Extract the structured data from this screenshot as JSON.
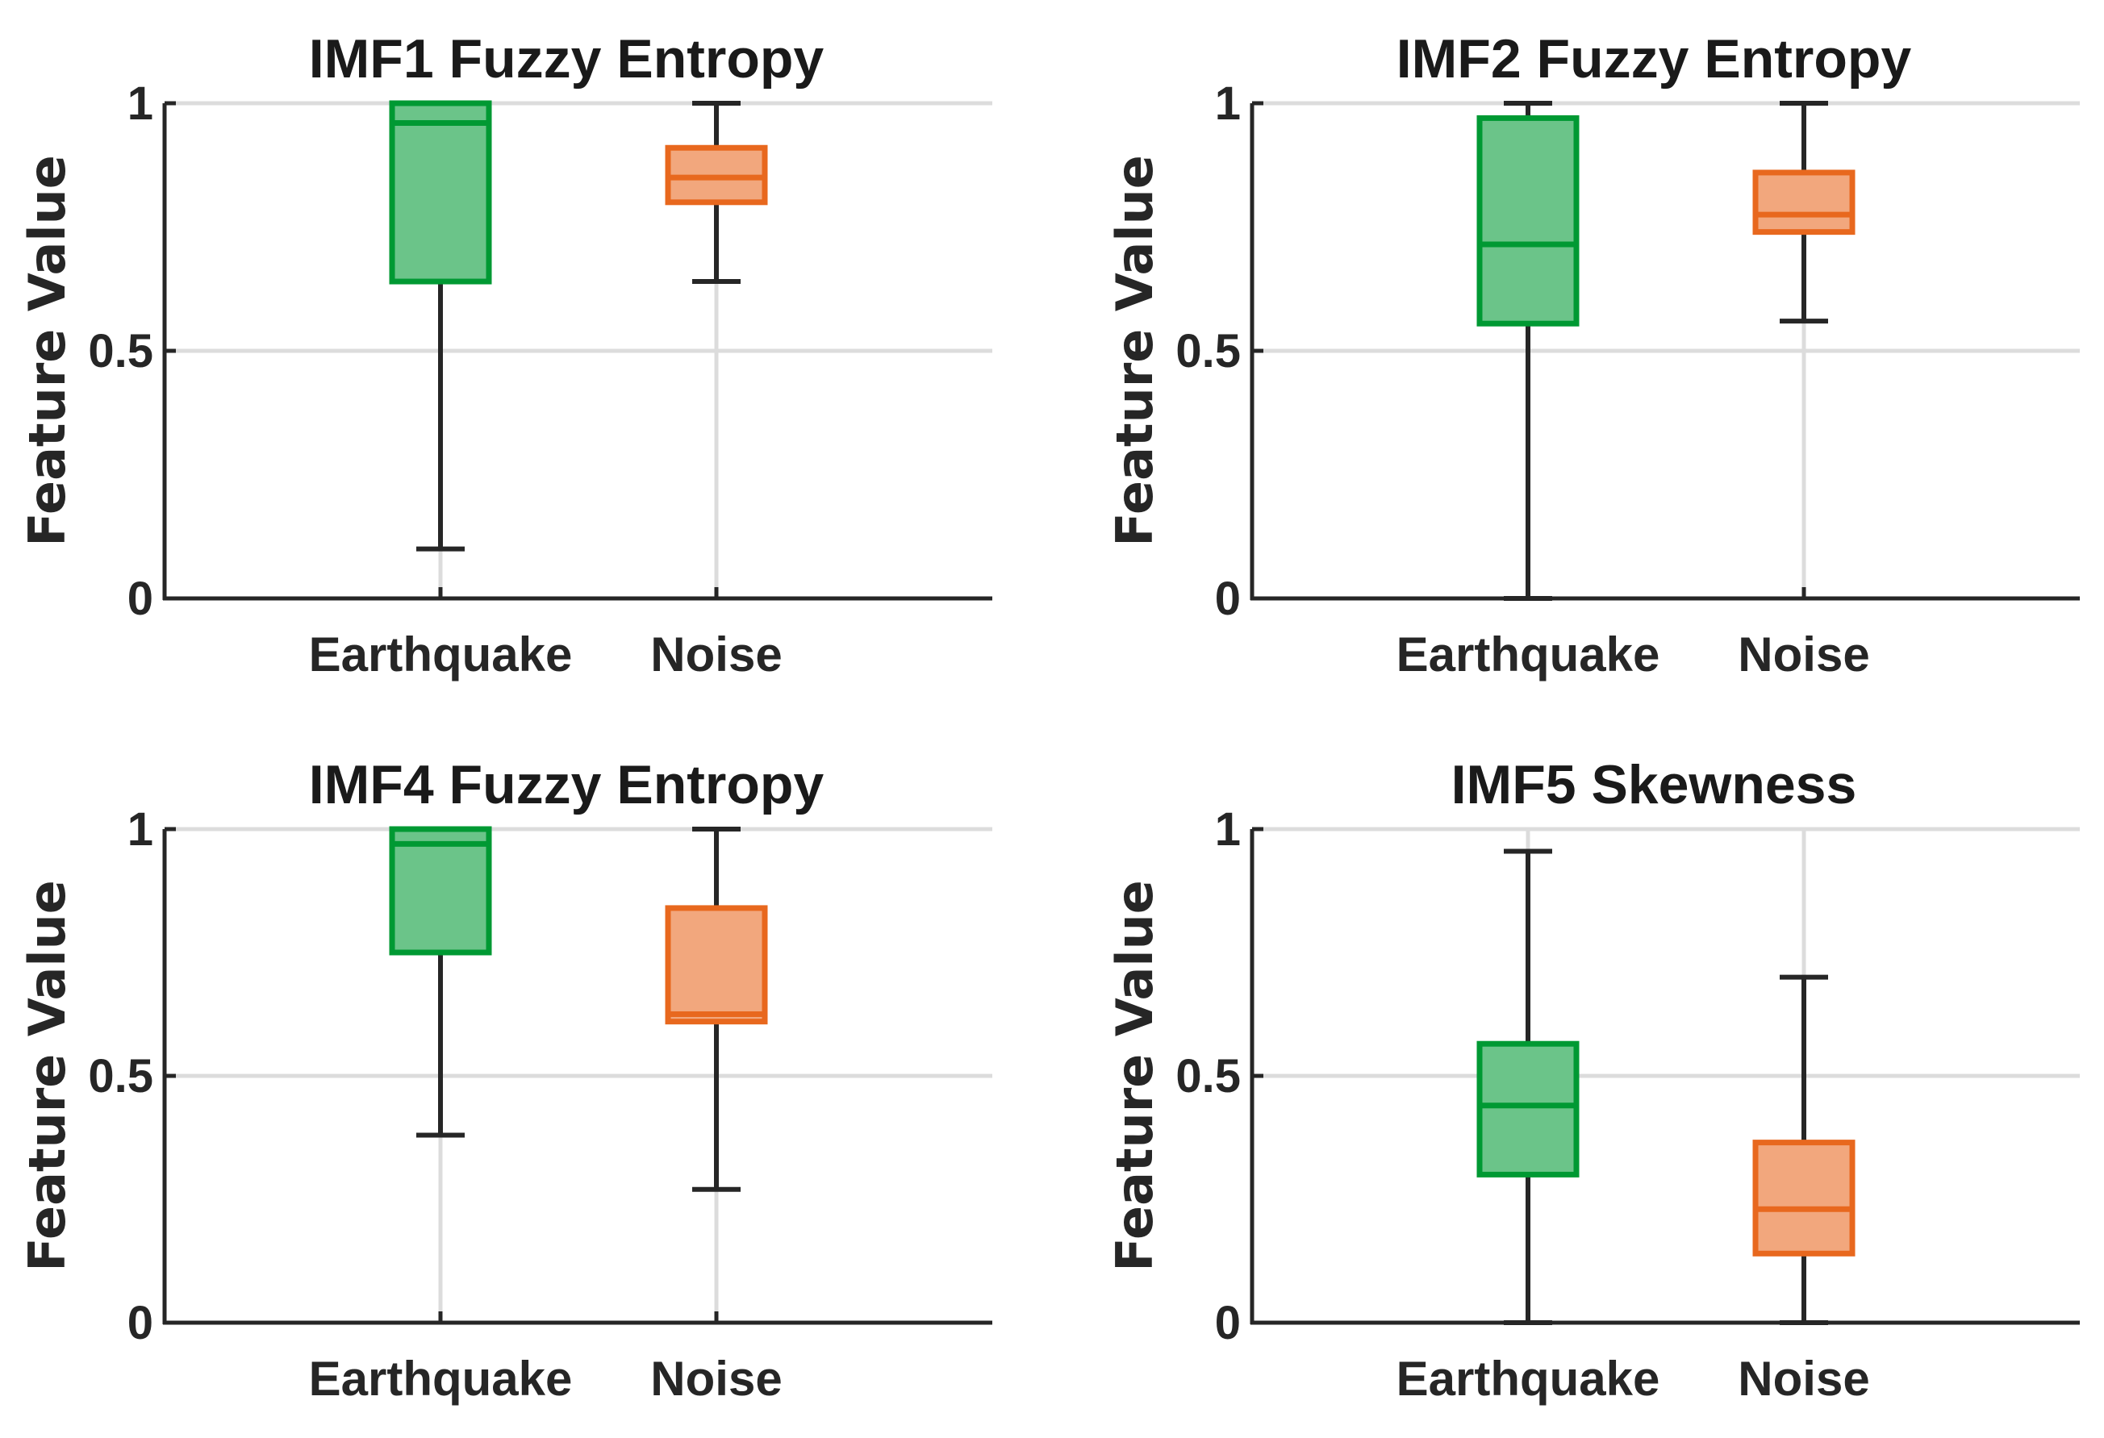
{
  "chart_data": [
    {
      "type": "box",
      "title": "IMF1 Fuzzy Entropy",
      "ylabel": "Feature Value",
      "xlabel": "",
      "ylim": [
        0,
        1
      ],
      "yticks": [
        0,
        0.5,
        1
      ],
      "ytick_labels": [
        "0",
        "0.5",
        "1"
      ],
      "grid": true,
      "categories": [
        "Earthquake",
        "Noise"
      ],
      "boxes": [
        {
          "name": "Earthquake",
          "whisker_low": 0.1,
          "q1": 0.64,
          "median": 0.96,
          "q3": 1.0,
          "whisker_high": 1.0,
          "color": "#009933"
        },
        {
          "name": "Noise",
          "whisker_low": 0.64,
          "q1": 0.8,
          "median": 0.85,
          "q3": 0.91,
          "whisker_high": 1.0,
          "color": "#e8681e"
        }
      ]
    },
    {
      "type": "box",
      "title": "IMF2 Fuzzy Entropy",
      "ylabel": "Feature Value",
      "xlabel": "",
      "ylim": [
        0,
        1
      ],
      "yticks": [
        0,
        0.5,
        1
      ],
      "ytick_labels": [
        "0",
        "0.5",
        "1"
      ],
      "grid": true,
      "categories": [
        "Earthquake",
        "Noise"
      ],
      "boxes": [
        {
          "name": "Earthquake",
          "whisker_low": 0.0,
          "q1": 0.555,
          "median": 0.715,
          "q3": 0.97,
          "whisker_high": 1.0,
          "color": "#009933"
        },
        {
          "name": "Noise",
          "whisker_low": 0.56,
          "q1": 0.74,
          "median": 0.775,
          "q3": 0.86,
          "whisker_high": 1.0,
          "color": "#e8681e"
        }
      ]
    },
    {
      "type": "box",
      "title": "IMF4 Fuzzy Entropy",
      "ylabel": "Feature Value",
      "xlabel": "",
      "ylim": [
        0,
        1
      ],
      "yticks": [
        0,
        0.5,
        1
      ],
      "ytick_labels": [
        "0",
        "0.5",
        "1"
      ],
      "grid": true,
      "categories": [
        "Earthquake",
        "Noise"
      ],
      "boxes": [
        {
          "name": "Earthquake",
          "whisker_low": 0.38,
          "q1": 0.75,
          "median": 0.97,
          "q3": 1.0,
          "whisker_high": 1.0,
          "color": "#009933"
        },
        {
          "name": "Noise",
          "whisker_low": 0.27,
          "q1": 0.61,
          "median": 0.625,
          "q3": 0.84,
          "whisker_high": 1.0,
          "color": "#e8681e"
        }
      ]
    },
    {
      "type": "box",
      "title": "IMF5 Skewness",
      "ylabel": "Feature Value",
      "xlabel": "",
      "ylim": [
        0,
        1
      ],
      "yticks": [
        0,
        0.5,
        1
      ],
      "ytick_labels": [
        "0",
        "0.5",
        "1"
      ],
      "grid": true,
      "categories": [
        "Earthquake",
        "Noise"
      ],
      "boxes": [
        {
          "name": "Earthquake",
          "whisker_low": 0.0,
          "q1": 0.3,
          "median": 0.44,
          "q3": 0.565,
          "whisker_high": 0.955,
          "color": "#009933"
        },
        {
          "name": "Noise",
          "whisker_low": 0.0,
          "q1": 0.14,
          "median": 0.23,
          "q3": 0.365,
          "whisker_high": 0.7,
          "color": "#e8681e"
        }
      ]
    }
  ]
}
